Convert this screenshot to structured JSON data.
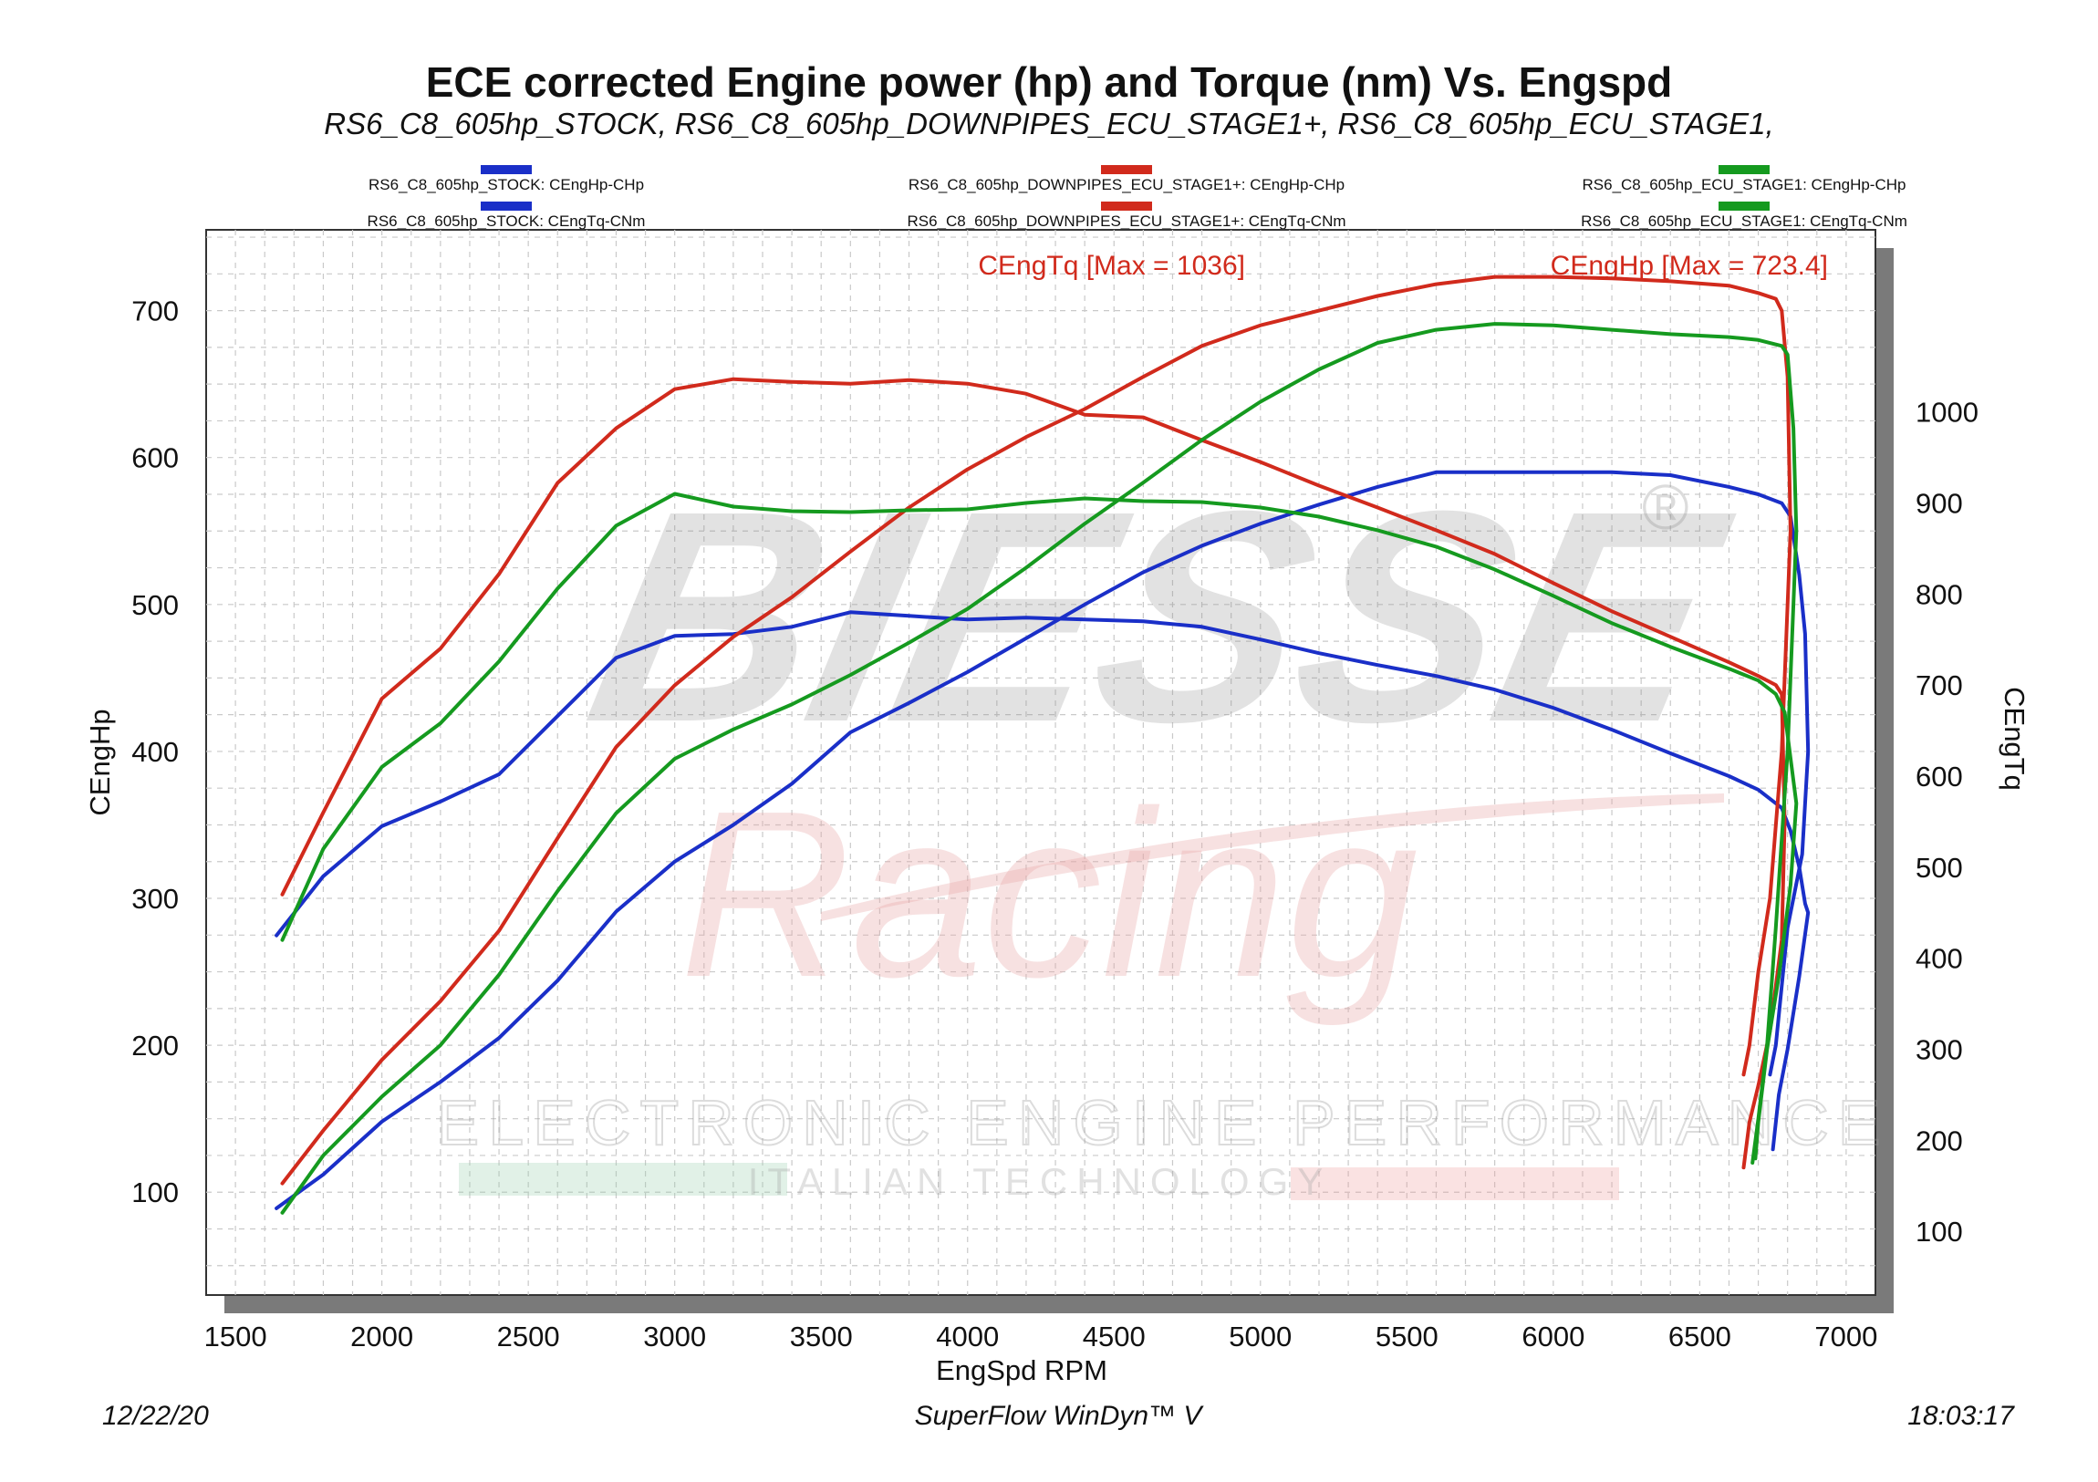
{
  "chart_data": {
    "type": "line",
    "title": "ECE corrected Engine power (hp) and Torque (nm) Vs. Engspd",
    "subtitle": "RS6_C8_605hp_STOCK, RS6_C8_605hp_DOWNPIPES_ECU_STAGE1+, RS6_C8_605hp_ECU_STAGE1,",
    "xlabel": "EngSpd RPM",
    "ylabel": "CEngHp",
    "ylabel_right": "CEngTq",
    "xlim": [
      1400,
      7100
    ],
    "ylim": [
      30,
      755
    ],
    "ylim_right": [
      30,
      1200
    ],
    "xticks": [
      1500,
      2000,
      2500,
      3000,
      3500,
      4000,
      4500,
      5000,
      5500,
      6000,
      6500,
      7000
    ],
    "yticks": [
      100,
      200,
      300,
      400,
      500,
      600,
      700
    ],
    "yticks_right": [
      100,
      200,
      300,
      400,
      500,
      600,
      700,
      800,
      900,
      1000
    ],
    "grid": true,
    "legend_position": "top",
    "annotations": [
      "CEngTq [Max = 1036]",
      "CEngHp [Max = 723.4]"
    ],
    "footer_left": "12/22/20",
    "footer_center": "SuperFlow WinDyn™ V",
    "footer_right": "18:03:17",
    "watermark": {
      "brand": "BIESSE",
      "registered": "®",
      "script": "Racing",
      "line1": "ELECTRONIC ENGINE PERFORMANCE",
      "line2": "ITALIAN TECHNOLOGY"
    },
    "series": [
      {
        "name": "RS6_C8_605hp_STOCK: CEngHp-CHp",
        "axis": "left",
        "color": "#1a2fc8",
        "x": [
          1640,
          1800,
          2000,
          2200,
          2400,
          2600,
          2800,
          3000,
          3200,
          3400,
          3600,
          3800,
          4000,
          4200,
          4400,
          4600,
          4800,
          5000,
          5200,
          5400,
          5600,
          5800,
          6000,
          6200,
          6400,
          6600,
          6700,
          6780,
          6810,
          6840,
          6860,
          6870,
          6850,
          6800,
          6760,
          6740
        ],
        "y": [
          89,
          112,
          148,
          175,
          205,
          244,
          291,
          325,
          350,
          378,
          413,
          433,
          454,
          477,
          500,
          522,
          540,
          555,
          568,
          580,
          590,
          590,
          590,
          590,
          588,
          580,
          575,
          569,
          560,
          520,
          480,
          400,
          330,
          280,
          200,
          180
        ]
      },
      {
        "name": "RS6_C8_605hp_STOCK: CEngTq-CNm",
        "axis": "right",
        "color": "#1a2fc8",
        "x": [
          1640,
          1800,
          2000,
          2200,
          2400,
          2600,
          2800,
          3000,
          3200,
          3400,
          3600,
          3800,
          4000,
          4200,
          4400,
          4600,
          4800,
          5000,
          5200,
          5400,
          5600,
          5800,
          6000,
          6200,
          6400,
          6600,
          6700,
          6780,
          6810,
          6840,
          6860,
          6870,
          6840,
          6800,
          6770,
          6750
        ],
        "y": [
          425,
          490,
          545,
          572,
          602,
          666,
          730,
          754,
          756,
          764,
          780,
          776,
          772,
          774,
          772,
          770,
          764,
          750,
          735,
          722,
          710,
          695,
          675,
          651,
          625,
          600,
          585,
          565,
          540,
          500,
          460,
          450,
          380,
          300,
          250,
          190
        ]
      },
      {
        "name": "RS6_C8_605hp_DOWNPIPES_ECU_STAGE1+: CEngHp-CHp",
        "axis": "left",
        "color": "#d12a1c",
        "x": [
          1660,
          1800,
          2000,
          2200,
          2400,
          2600,
          2800,
          3000,
          3200,
          3400,
          3600,
          3800,
          4000,
          4200,
          4400,
          4600,
          4800,
          5000,
          5200,
          5400,
          5600,
          5800,
          6000,
          6200,
          6400,
          6600,
          6700,
          6760,
          6780,
          6800,
          6810,
          6780,
          6740,
          6700,
          6670,
          6650
        ],
        "y": [
          106,
          142,
          190,
          230,
          278,
          341,
          403,
          445,
          478,
          505,
          536,
          566,
          592,
          614,
          633,
          655,
          676,
          690,
          700,
          710,
          718,
          723,
          723,
          722,
          720,
          717,
          712,
          708,
          700,
          655,
          550,
          400,
          300,
          250,
          200,
          180
        ]
      },
      {
        "name": "RS6_C8_605hp_DOWNPIPES_ECU_STAGE1+: CEngTq-CNm",
        "axis": "right",
        "color": "#d12a1c",
        "x": [
          1660,
          1800,
          2000,
          2200,
          2400,
          2600,
          2800,
          3000,
          3200,
          3400,
          3600,
          3800,
          4000,
          4200,
          4400,
          4600,
          4800,
          5000,
          5200,
          5400,
          5600,
          5800,
          6000,
          6200,
          6400,
          6600,
          6700,
          6760,
          6780,
          6790,
          6780,
          6740,
          6700,
          6670,
          6650
        ],
        "y": [
          470,
          560,
          685,
          740,
          822,
          922,
          982,
          1025,
          1036,
          1033,
          1031,
          1035,
          1031,
          1020,
          997,
          994,
          969,
          945,
          919,
          895,
          870,
          844,
          812,
          781,
          753,
          725,
          710,
          700,
          690,
          550,
          420,
          320,
          260,
          220,
          170
        ]
      },
      {
        "name": "RS6_C8_605hp_ECU_STAGE1: CEngHp-CHp",
        "axis": "left",
        "color": "#159a1f",
        "x": [
          1660,
          1800,
          2000,
          2200,
          2400,
          2600,
          2800,
          3000,
          3200,
          3400,
          3600,
          3800,
          4000,
          4200,
          4400,
          4600,
          4800,
          5000,
          5200,
          5400,
          5600,
          5800,
          6000,
          6200,
          6400,
          6600,
          6700,
          6780,
          6800,
          6820,
          6830,
          6800,
          6760,
          6730,
          6700,
          6680
        ],
        "y": [
          86,
          125,
          165,
          200,
          248,
          305,
          358,
          395,
          415,
          432,
          452,
          474,
          497,
          525,
          555,
          583,
          612,
          638,
          660,
          678,
          687,
          691,
          690,
          687,
          684,
          682,
          680,
          676,
          670,
          620,
          550,
          400,
          280,
          200,
          150,
          120
        ]
      },
      {
        "name": "RS6_C8_605hp_ECU_STAGE1: CEngTq-CNm",
        "axis": "right",
        "color": "#159a1f",
        "x": [
          1660,
          1800,
          2000,
          2200,
          2400,
          2600,
          2800,
          3000,
          3200,
          3400,
          3600,
          3800,
          4000,
          4200,
          4400,
          4600,
          4800,
          5000,
          5200,
          5400,
          5600,
          5800,
          6000,
          6200,
          6400,
          6600,
          6700,
          6760,
          6790,
          6810,
          6830,
          6810,
          6770,
          6730,
          6700,
          6690
        ],
        "y": [
          420,
          520,
          610,
          658,
          726,
          806,
          875,
          910,
          896,
          891,
          890,
          892,
          893,
          900,
          905,
          902,
          901,
          895,
          885,
          870,
          852,
          827,
          798,
          768,
          742,
          718,
          705,
          690,
          670,
          620,
          570,
          480,
          380,
          300,
          220,
          180
        ]
      }
    ]
  }
}
